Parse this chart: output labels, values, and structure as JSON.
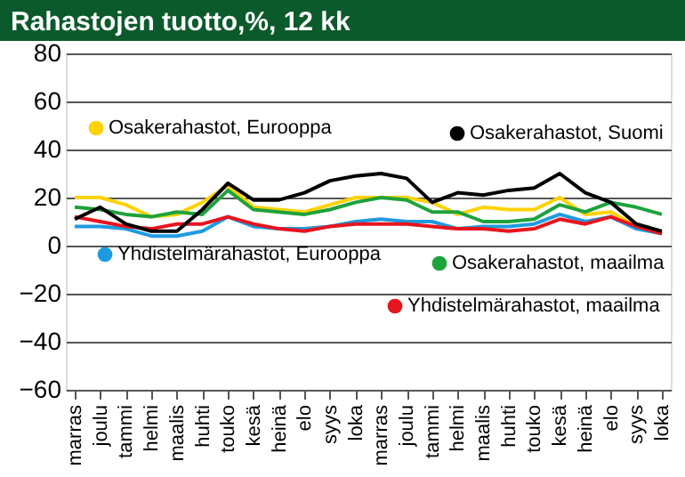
{
  "chart_data": {
    "type": "line",
    "title": "Rahastojen tuotto,%, 12 kk",
    "categories": [
      "marras",
      "joulu",
      "tammi",
      "helmi",
      "maalis",
      "huhti",
      "touko",
      "kesä",
      "heinä",
      "elo",
      "syys",
      "loka",
      "marras",
      "joulu",
      "tammi",
      "helmi",
      "maalis",
      "huhti",
      "touko",
      "kesä",
      "heinä",
      "elo",
      "syys",
      "loka"
    ],
    "ylim": [
      -60,
      80
    ],
    "yticks": [
      -60,
      -40,
      -20,
      0,
      20,
      40,
      60,
      80
    ],
    "grid": "y",
    "legend": "top",
    "marker": "none",
    "line_style": "solid",
    "series": [
      {
        "name": "Osakerahastot, Eurooppa",
        "color": "#ffd200",
        "values": [
          20,
          20,
          17,
          12,
          13,
          18,
          25,
          16,
          15,
          14,
          17,
          20,
          20,
          20,
          18,
          13,
          16,
          15,
          15,
          20,
          13,
          14,
          8,
          5
        ]
      },
      {
        "name": "Yhdistelmärahastot, Eurooppa",
        "color": "#1e9be0",
        "values": [
          8,
          8,
          7,
          4,
          4,
          6,
          12,
          8,
          7,
          7,
          8,
          10,
          11,
          10,
          10,
          7,
          8,
          8,
          9,
          13,
          10,
          12,
          7,
          5
        ]
      },
      {
        "name": "Osakerahastot, maailma",
        "color": "#1ea23c",
        "values": [
          16,
          15,
          13,
          12,
          14,
          13,
          23,
          15,
          14,
          13,
          15,
          18,
          20,
          19,
          14,
          14,
          10,
          10,
          11,
          17,
          14,
          18,
          16,
          13
        ]
      },
      {
        "name": "Yhdistelmärahastot, maailma",
        "color": "#e8141e",
        "values": [
          12,
          10,
          8,
          7,
          9,
          9,
          12,
          9,
          7,
          6,
          8,
          9,
          9,
          9,
          8,
          7,
          7,
          6,
          7,
          11,
          9,
          12,
          8,
          5
        ]
      },
      {
        "name": "Osakerahastot, Suomi",
        "color": "#000000",
        "values": [
          11,
          16,
          9,
          6,
          6,
          15,
          26,
          19,
          19,
          22,
          27,
          29,
          30,
          28,
          18,
          22,
          21,
          23,
          24,
          30,
          22,
          18,
          9,
          6
        ]
      }
    ]
  }
}
